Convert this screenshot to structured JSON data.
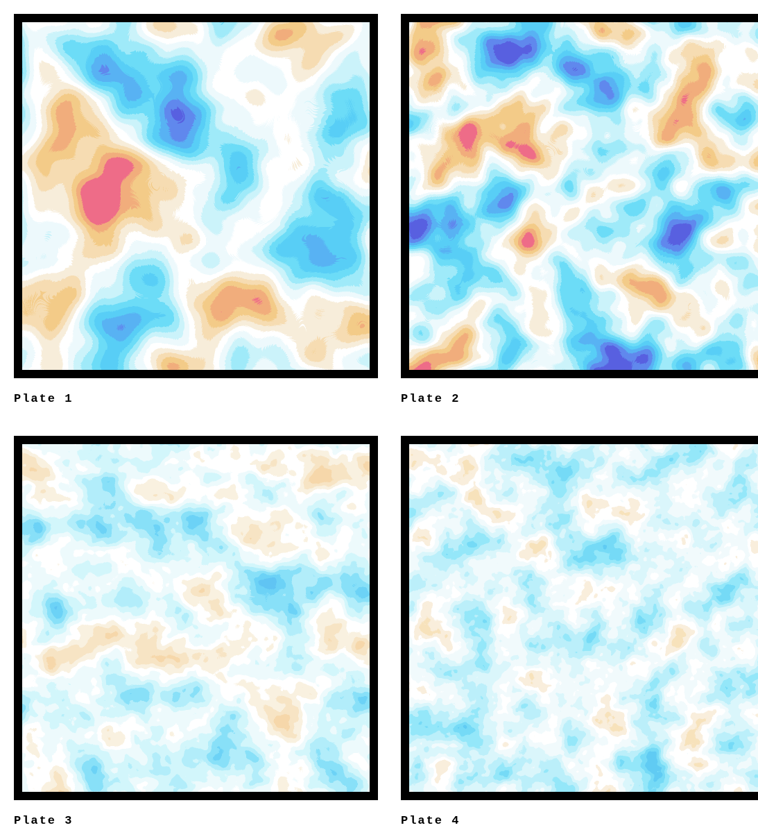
{
  "plates": [
    {
      "caption": "Plate 1"
    },
    {
      "caption": "Plate 2"
    },
    {
      "caption": "Plate 3"
    },
    {
      "caption": "Plate 4"
    }
  ]
}
